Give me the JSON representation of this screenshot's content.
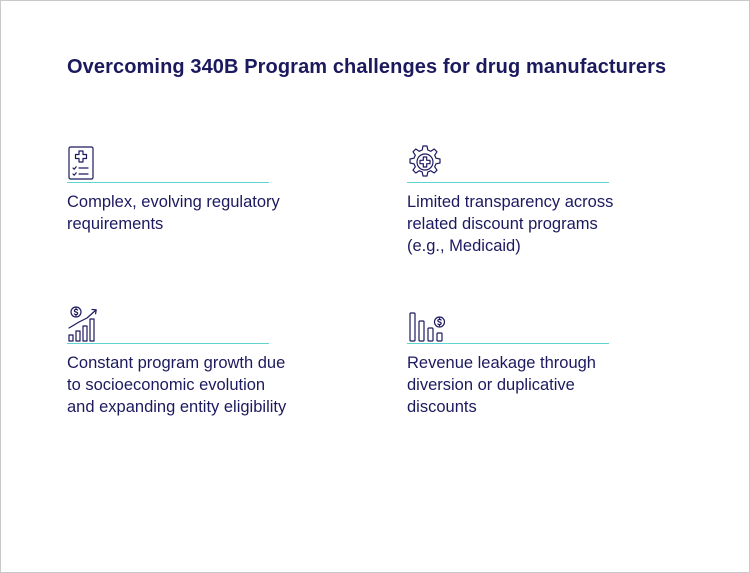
{
  "title": "Overcoming 340B Program challenges for drug manufacturers",
  "colors": {
    "text": "#1c1a5e",
    "accent_rule": "#5fd3cf",
    "border": "#c9c9c9"
  },
  "challenges": [
    {
      "icon": "medical-clipboard-icon",
      "text": "Complex, evolving regulatory requirements"
    },
    {
      "icon": "gear-medical-cross-icon",
      "text": "Limited transparency across related discount programs (e.g., Medicaid)"
    },
    {
      "icon": "growth-chart-dollar-icon",
      "text": "Constant program growth due to socioeconomic evolution and expanding entity eligibility"
    },
    {
      "icon": "declining-bars-dollar-icon",
      "text": "Revenue leakage through diversion or duplicative discounts"
    }
  ]
}
